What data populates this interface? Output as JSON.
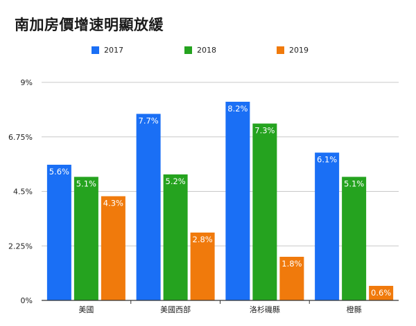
{
  "title": "南加房價增速明顯放緩",
  "colors": {
    "s2017": "#1a6ff5",
    "s2018": "#25a31f",
    "s2019": "#f07a0c",
    "grid": "#c8c8c8",
    "axis": "#333333"
  },
  "chart_data": {
    "type": "bar",
    "title": "南加房價增速明顯放緩",
    "categories": [
      "美國",
      "美國西部",
      "洛杉磯縣",
      "橙縣"
    ],
    "series": [
      {
        "name": "2017",
        "values": [
          5.6,
          7.7,
          8.2,
          6.1
        ],
        "labels": [
          "5.6%",
          "7.7%",
          "8.2%",
          "6.1%"
        ]
      },
      {
        "name": "2018",
        "values": [
          5.1,
          5.2,
          7.3,
          5.1
        ],
        "labels": [
          "5.1%",
          "5.2%",
          "7.3%",
          "5.1%"
        ]
      },
      {
        "name": "2019",
        "values": [
          4.3,
          2.8,
          1.8,
          0.6
        ],
        "labels": [
          "4.3%",
          "2.8%",
          "1.8%",
          "0.6%"
        ]
      }
    ],
    "yticks": [
      "0%",
      "2.25%",
      "4.5%",
      "6.75%",
      "9%"
    ],
    "ytick_values": [
      0,
      2.25,
      4.5,
      6.75,
      9
    ],
    "ylim": [
      0,
      9
    ],
    "xlabel": "",
    "ylabel": "",
    "legend_position": "top",
    "grid": true
  }
}
